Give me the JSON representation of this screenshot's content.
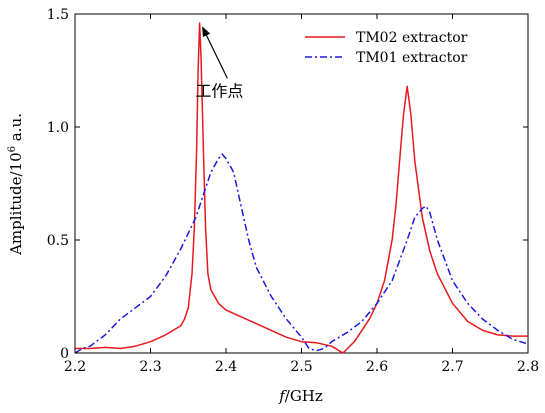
{
  "chart_data": {
    "type": "line",
    "xlabel_italic": "f",
    "xlabel_rest": "/GHz",
    "ylabel_prefix": "Amplitude/10",
    "ylabel_exp": "6",
    "ylabel_suffix": " a.u.",
    "xlim": [
      2.2,
      2.8
    ],
    "ylim": [
      0,
      1.5
    ],
    "x_ticks": [
      2.2,
      2.3,
      2.4,
      2.5,
      2.6,
      2.7,
      2.8
    ],
    "x_tick_labels": [
      "2.2",
      "2.3",
      "2.4",
      "2.5",
      "2.6",
      "2.7",
      "2.8"
    ],
    "y_ticks": [
      0,
      0.5,
      1.0,
      1.5
    ],
    "y_tick_labels": [
      "0",
      "0.5",
      "1.0",
      "1.5"
    ],
    "grid": false,
    "legend_position": "top-right",
    "annotation": {
      "text": "工作点",
      "x": 2.37,
      "y": 1.1,
      "arrow_to": [
        2.365,
        1.45
      ]
    },
    "series": [
      {
        "name": "TM02 extractor",
        "color": "#e8191c",
        "style": "solid",
        "x": [
          2.2,
          2.22,
          2.24,
          2.26,
          2.28,
          2.3,
          2.32,
          2.33,
          2.34,
          2.345,
          2.35,
          2.355,
          2.358,
          2.361,
          2.363,
          2.365,
          2.367,
          2.37,
          2.373,
          2.376,
          2.38,
          2.39,
          2.4,
          2.42,
          2.44,
          2.46,
          2.48,
          2.5,
          2.52,
          2.54,
          2.555,
          2.57,
          2.58,
          2.59,
          2.6,
          2.61,
          2.62,
          2.625,
          2.63,
          2.635,
          2.64,
          2.645,
          2.65,
          2.66,
          2.67,
          2.68,
          2.7,
          2.72,
          2.74,
          2.76,
          2.78,
          2.8
        ],
        "y": [
          0.02,
          0.02,
          0.025,
          0.02,
          0.03,
          0.05,
          0.08,
          0.1,
          0.12,
          0.15,
          0.2,
          0.35,
          0.55,
          0.9,
          1.25,
          1.46,
          1.3,
          0.9,
          0.55,
          0.35,
          0.28,
          0.22,
          0.19,
          0.16,
          0.13,
          0.1,
          0.07,
          0.05,
          0.045,
          0.03,
          0.0,
          0.05,
          0.1,
          0.15,
          0.22,
          0.32,
          0.5,
          0.65,
          0.85,
          1.05,
          1.18,
          1.05,
          0.85,
          0.6,
          0.45,
          0.35,
          0.22,
          0.14,
          0.1,
          0.08,
          0.075,
          0.075
        ]
      },
      {
        "name": "TM01 extractor",
        "color": "#1a1adc",
        "style": "dash-dot",
        "x": [
          2.2,
          2.21,
          2.22,
          2.24,
          2.26,
          2.28,
          2.3,
          2.32,
          2.34,
          2.35,
          2.36,
          2.37,
          2.38,
          2.39,
          2.395,
          2.4,
          2.41,
          2.42,
          2.43,
          2.44,
          2.46,
          2.48,
          2.5,
          2.51,
          2.52,
          2.53,
          2.54,
          2.56,
          2.58,
          2.6,
          2.62,
          2.64,
          2.65,
          2.66,
          2.665,
          2.67,
          2.68,
          2.7,
          2.72,
          2.74,
          2.76,
          2.78,
          2.8
        ],
        "y": [
          0.0,
          0.02,
          0.03,
          0.08,
          0.15,
          0.2,
          0.25,
          0.34,
          0.46,
          0.53,
          0.6,
          0.7,
          0.8,
          0.86,
          0.88,
          0.86,
          0.8,
          0.65,
          0.5,
          0.38,
          0.25,
          0.15,
          0.07,
          0.02,
          0.01,
          0.02,
          0.05,
          0.09,
          0.14,
          0.22,
          0.32,
          0.5,
          0.6,
          0.64,
          0.65,
          0.62,
          0.5,
          0.32,
          0.22,
          0.15,
          0.1,
          0.06,
          0.04
        ]
      }
    ]
  }
}
